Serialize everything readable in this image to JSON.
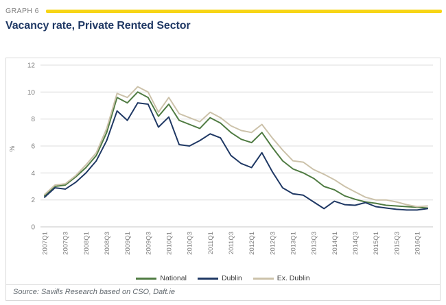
{
  "header": {
    "graph_label": "GRAPH 6",
    "title": "Vacancy rate, Private Rented Sector"
  },
  "source": "Source: Savills Research based on CSO, Daft.ie",
  "colors": {
    "accent_yellow": "#f7d516",
    "title_navy": "#1f3864",
    "gridline": "#dcdcdc",
    "zero_line": "#c6c6c6",
    "axis_text": "#7f7f7f",
    "box_border": "#d9d9d9"
  },
  "chart_data": {
    "type": "line",
    "title": "Vacancy rate, Private Rented Sector",
    "xlabel": "",
    "ylabel": "%",
    "ylim": [
      0,
      12
    ],
    "ytick_interval": 2,
    "grid": true,
    "legend_position": "bottom",
    "x_tick_labels_every": 2,
    "categories": [
      "2007Q1",
      "2007Q2",
      "2007Q3",
      "2007Q4",
      "2008Q1",
      "2008Q2",
      "2008Q3",
      "2008Q4",
      "2009Q1",
      "2009Q2",
      "2009Q3",
      "2009Q4",
      "2010Q1",
      "2010Q2",
      "2010Q3",
      "2010Q4",
      "2011Q1",
      "2011Q2",
      "2011Q3",
      "2011Q4",
      "2012Q1",
      "2012Q2",
      "2012Q3",
      "2012Q4",
      "2013Q1",
      "2013Q2",
      "2013Q3",
      "2013Q4",
      "2014Q1",
      "2014Q2",
      "2014Q3",
      "2014Q4",
      "2015Q1",
      "2015Q2",
      "2015Q3",
      "2015Q4",
      "2016Q1",
      "2016Q2"
    ],
    "series": [
      {
        "name": "National",
        "color": "#4f7b42",
        "values": [
          2.3,
          3.0,
          3.1,
          3.7,
          4.4,
          5.3,
          7.0,
          9.6,
          9.2,
          10.0,
          9.6,
          8.2,
          9.1,
          7.9,
          7.6,
          7.3,
          8.1,
          7.7,
          7.0,
          6.5,
          6.25,
          7.0,
          5.9,
          4.9,
          4.3,
          4.0,
          3.6,
          3.0,
          2.75,
          2.3,
          2.05,
          1.85,
          1.75,
          1.6,
          1.55,
          1.5,
          1.45,
          1.4
        ]
      },
      {
        "name": "Dublin",
        "color": "#1f3864",
        "values": [
          2.2,
          2.9,
          2.8,
          3.3,
          4.0,
          4.9,
          6.4,
          8.6,
          7.9,
          9.2,
          9.1,
          7.4,
          8.15,
          6.1,
          6.0,
          6.4,
          6.9,
          6.6,
          5.3,
          4.7,
          4.4,
          5.5,
          4.1,
          2.9,
          2.45,
          2.35,
          1.85,
          1.35,
          1.9,
          1.65,
          1.6,
          1.8,
          1.5,
          1.4,
          1.3,
          1.25,
          1.25,
          1.35
        ]
      },
      {
        "name": "Ex. Dublin",
        "color": "#ccc2aa",
        "values": [
          2.4,
          3.1,
          3.2,
          3.8,
          4.6,
          5.5,
          7.3,
          9.9,
          9.6,
          10.4,
          10.0,
          8.5,
          9.6,
          8.4,
          8.1,
          7.8,
          8.5,
          8.1,
          7.5,
          7.15,
          7.0,
          7.6,
          6.6,
          5.7,
          4.9,
          4.8,
          4.25,
          3.9,
          3.5,
          3.0,
          2.6,
          2.2,
          2.0,
          2.0,
          1.85,
          1.65,
          1.5,
          1.55
        ]
      }
    ]
  }
}
